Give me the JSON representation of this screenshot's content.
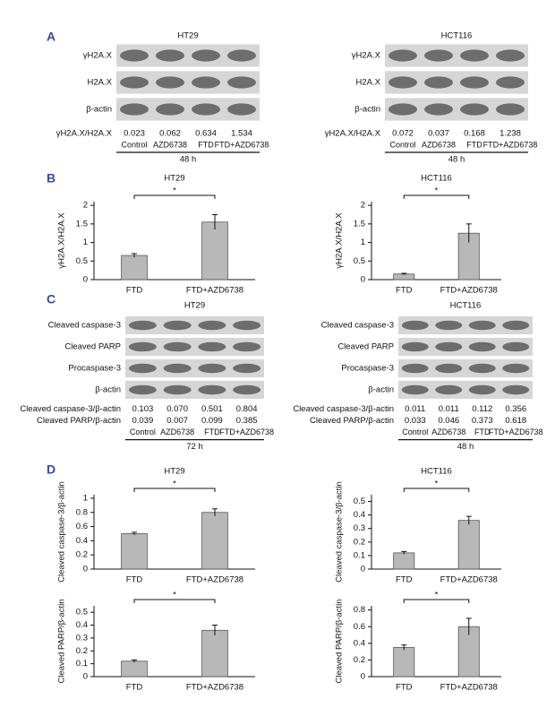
{
  "panel_a": {
    "letter": "A",
    "blots": [
      {
        "title": "HT29",
        "rows": [
          "γH2A.X",
          "H2A.X",
          "β-actin"
        ],
        "ratio_rows": [
          {
            "label": "γH2A.X/H2A.X",
            "values": [
              "0.023",
              "0.062",
              "0.634",
              "1.534"
            ]
          }
        ],
        "lanes": [
          "Control",
          "AZD6738",
          "FTD",
          "FTD+AZD6738"
        ],
        "time": "48 h"
      },
      {
        "title": "HCT116",
        "rows": [
          "γH2A.X",
          "H2A.X",
          "β-actin"
        ],
        "ratio_rows": [
          {
            "label": "γH2A.X/H2A.X",
            "values": [
              "0.072",
              "0.037",
              "0.168",
              "1.238"
            ]
          }
        ],
        "lanes": [
          "Control",
          "AZD6738",
          "FTD",
          "FTD+AZD6738"
        ],
        "time": "48 h"
      }
    ]
  },
  "panel_b": {
    "letter": "B"
  },
  "panel_c": {
    "letter": "C",
    "blots": [
      {
        "title": "HT29",
        "rows": [
          "Cleaved caspase-3",
          "Cleaved PARP",
          "Procaspase-3",
          "β-actin"
        ],
        "ratio_rows": [
          {
            "label": "Cleaved caspase-3/β-actin",
            "values": [
              "0.103",
              "0.070",
              "0.501",
              "0.804"
            ]
          },
          {
            "label": "Cleaved PARP/β-actin",
            "values": [
              "0.039",
              "0.007",
              "0.099",
              "0.385"
            ]
          }
        ],
        "lanes": [
          "Control",
          "AZD6738",
          "FTD",
          "FTD+AZD6738"
        ],
        "time": "72 h"
      },
      {
        "title": "HCT116",
        "rows": [
          "Cleaved caspase-3",
          "Cleaved PARP",
          "Procaspase-3",
          "β-actin"
        ],
        "ratio_rows": [
          {
            "label": "Cleaved caspase-3/β-actin",
            "values": [
              "0.011",
              "0.011",
              "0.112",
              "0.356"
            ]
          },
          {
            "label": "Cleaved PARP/β-actin",
            "values": [
              "0.033",
              "0.046",
              "0.373",
              "0.618"
            ]
          }
        ],
        "lanes": [
          "Control",
          "AZD6738",
          "FTD",
          "FTD+AZD6738"
        ],
        "time": "48 h"
      }
    ]
  },
  "panel_d": {
    "letter": "D"
  },
  "chart_data": [
    {
      "type": "bar",
      "title": "HT29",
      "y_label": "γH2A.X/H2A.X",
      "categories": [
        "FTD",
        "FTD+AZD6738"
      ],
      "values": [
        0.65,
        1.55
      ],
      "errors": [
        0.05,
        0.2
      ],
      "color": "#b8b8b8",
      "ylim": [
        0,
        2.1
      ],
      "yticks": [
        0,
        0.5,
        1,
        1.5,
        2
      ],
      "significance": "*"
    },
    {
      "type": "bar",
      "title": "HCT116",
      "y_label": "γH2A.X/H2A.X",
      "categories": [
        "FTD",
        "FTD+AZD6738"
      ],
      "values": [
        0.15,
        1.25
      ],
      "errors": [
        0.02,
        0.25
      ],
      "color": "#b8b8b8",
      "ylim": [
        0,
        2.1
      ],
      "yticks": [
        0,
        0.5,
        1,
        1.5,
        2
      ],
      "significance": "*"
    },
    {
      "type": "bar",
      "title": "HT29",
      "y_label": "Cleaved caspase-3/β-actin",
      "categories": [
        "FTD",
        "FTD+AZD6738"
      ],
      "values": [
        0.5,
        0.8
      ],
      "errors": [
        0.02,
        0.05
      ],
      "color": "#b8b8b8",
      "ylim": [
        0,
        1.05
      ],
      "yticks": [
        0,
        0.2,
        0.4,
        0.6,
        0.8,
        1
      ],
      "significance": "*"
    },
    {
      "type": "bar",
      "title": "HCT116",
      "y_label": "Cleaved caspase-3/β-actin",
      "categories": [
        "FTD",
        "FTD+AZD6738"
      ],
      "values": [
        0.12,
        0.36
      ],
      "errors": [
        0.01,
        0.03
      ],
      "color": "#b8b8b8",
      "ylim": [
        0,
        0.55
      ],
      "yticks": [
        0,
        0.1,
        0.2,
        0.3,
        0.4,
        0.5
      ],
      "significance": "*"
    },
    {
      "type": "bar",
      "y_label": "Cleaved PARP/β-actin",
      "categories": [
        "FTD",
        "FTD+AZD6738"
      ],
      "values": [
        0.12,
        0.36
      ],
      "errors": [
        0.01,
        0.04
      ],
      "color": "#b8b8b8",
      "ylim": [
        0,
        0.55
      ],
      "yticks": [
        0,
        0.1,
        0.2,
        0.3,
        0.4,
        0.5
      ],
      "significance": "*"
    },
    {
      "type": "bar",
      "y_label": "Cleaved PARP/β-actin",
      "categories": [
        "FTD",
        "FTD+AZD6738"
      ],
      "values": [
        0.35,
        0.6
      ],
      "errors": [
        0.03,
        0.1
      ],
      "color": "#b8b8b8",
      "ylim": [
        0,
        0.85
      ],
      "yticks": [
        0,
        0.2,
        0.4,
        0.6,
        0.8
      ],
      "significance": "*"
    }
  ]
}
